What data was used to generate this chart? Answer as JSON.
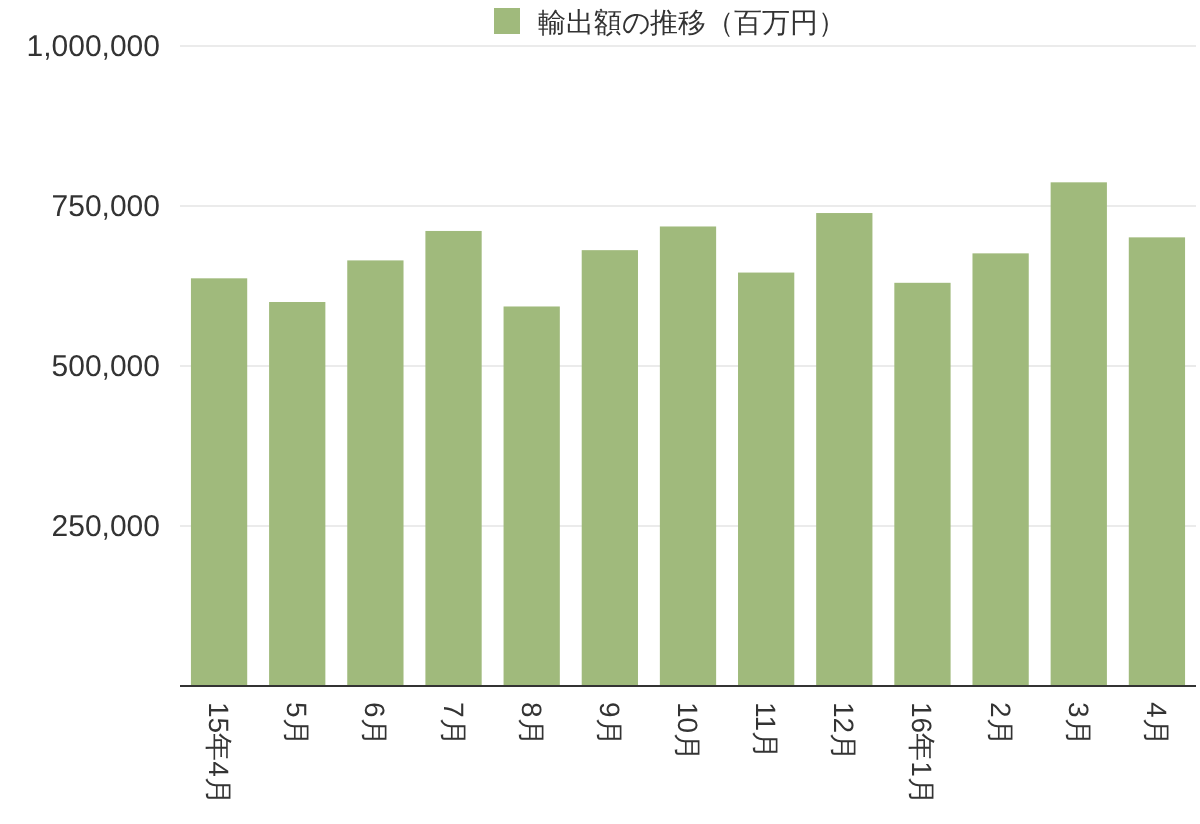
{
  "chart_data": {
    "type": "bar",
    "categories": [
      "15年4月",
      "5月",
      "6月",
      "7月",
      "8月",
      "9月",
      "10月",
      "11月",
      "12月",
      "16年1月",
      "2月",
      "3月",
      "4月"
    ],
    "series": [
      {
        "name": "輸出額の推移（百万円）",
        "color": "#a0ba7c",
        "values": [
          637000,
          600000,
          665000,
          711000,
          593000,
          681000,
          718000,
          646000,
          739000,
          630000,
          676000,
          787000,
          701000
        ]
      }
    ],
    "ylim": [
      0,
      1000000
    ],
    "yticks": [
      {
        "value": 250000,
        "label": "250,000"
      },
      {
        "value": 500000,
        "label": "500,000"
      },
      {
        "value": 750000,
        "label": "750,000"
      },
      {
        "value": 1000000,
        "label": "1,000,000"
      }
    ],
    "grid": "y",
    "legend": "top"
  }
}
